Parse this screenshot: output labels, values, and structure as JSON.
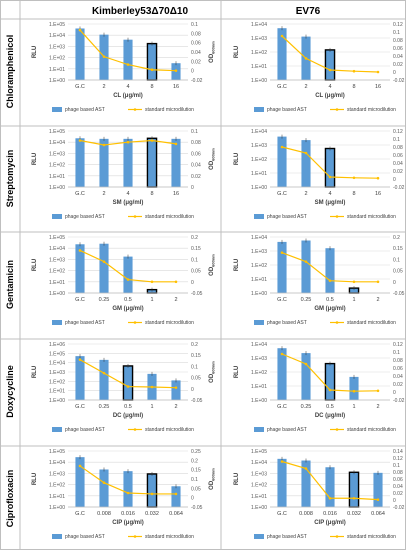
{
  "layout": {
    "columns": [
      "Kimberley53Δ70Δ10",
      "EV76"
    ],
    "rows": [
      "Chloramphenicol",
      "Streptomycin",
      "Gentamicin",
      "Doxycycline",
      "Ciprofloxacin"
    ]
  },
  "legend": {
    "bar_label": "phage based AST",
    "line_label": "standard microdilution"
  },
  "colors": {
    "bar": "#5b9bd5",
    "bar_highlight_border": "#000000",
    "line": "#ffc000",
    "error": "#333333",
    "gridline": "#d9d9d9",
    "frame": "#bfbfbf"
  },
  "axis_titles": {
    "y_left": "RLU",
    "y_right": "OD",
    "y_right_sub": "600nm"
  },
  "chart_data": [
    {
      "id": "k-cl",
      "type": "bar",
      "x_title": "CL (μg/ml)",
      "categories": [
        "G.C",
        "2",
        "4",
        "8",
        "16"
      ],
      "rlu_log10": [
        4.6,
        4.05,
        3.6,
        3.25,
        1.5
      ],
      "highlight_index": 3,
      "od": [
        0.087,
        0.03,
        0.013,
        0.002,
        0.0
      ],
      "od_ylim": [
        -0.02,
        0.1
      ],
      "od_ticks": [
        "-0.02",
        "0",
        "0.02",
        "0.04",
        "0.06",
        "0.08",
        "0.1"
      ],
      "log_max": 5
    },
    {
      "id": "e-cl",
      "type": "bar",
      "x_title": "CL (μg/ml)",
      "categories": [
        "G.C",
        "2",
        "4",
        "8",
        "16"
      ],
      "rlu_log10": [
        3.7,
        3.1,
        2.15,
        0,
        0
      ],
      "highlight_index": 2,
      "od": [
        0.09,
        0.034,
        0.005,
        0.002,
        0.0
      ],
      "od_ylim": [
        -0.02,
        0.12
      ],
      "od_ticks": [
        "-0.02",
        "0",
        "0.02",
        "0.04",
        "0.06",
        "0.08",
        "0.1",
        "0.12"
      ],
      "log_max": 4
    },
    {
      "id": "k-sm",
      "type": "bar",
      "x_title": "SM (μg/ml)",
      "categories": [
        "G.C",
        "2",
        "4",
        "8",
        "16"
      ],
      "rlu_log10": [
        4.35,
        4.3,
        4.3,
        4.35,
        4.3
      ],
      "highlight_index": 3,
      "od": [
        0.083,
        0.075,
        0.08,
        0.083,
        0.077
      ],
      "od_ylim": [
        0,
        0.1
      ],
      "od_ticks": [
        "0",
        "0.02",
        "0.04",
        "0.06",
        "0.08",
        "0.1"
      ],
      "log_max": 5
    },
    {
      "id": "e-sm",
      "type": "bar",
      "x_title": "SM (μg/ml)",
      "categories": [
        "G.C",
        "2",
        "4",
        "8",
        "16"
      ],
      "rlu_log10": [
        3.6,
        3.35,
        2.75,
        0,
        0
      ],
      "highlight_index": 2,
      "od": [
        0.08,
        0.065,
        0.005,
        0.003,
        0.002
      ],
      "od_ylim": [
        -0.02,
        0.12
      ],
      "od_ticks": [
        "-0.02",
        "0",
        "0.02",
        "0.04",
        "0.06",
        "0.08",
        "0.1",
        "0.12"
      ],
      "log_max": 4
    },
    {
      "id": "k-gm",
      "type": "bar",
      "x_title": "GM (μg/ml)",
      "categories": [
        "G.C",
        "0.25",
        "0.5",
        "1",
        "2"
      ],
      "rlu_log10": [
        4.35,
        4.4,
        3.25,
        0.3,
        0
      ],
      "highlight_index": 3,
      "od": [
        0.14,
        0.09,
        0.01,
        0.0,
        0.0
      ],
      "od_ylim": [
        -0.05,
        0.2
      ],
      "od_ticks": [
        "-0.05",
        "0",
        "0.05",
        "0.1",
        "0.15",
        "0.2"
      ],
      "log_max": 5
    },
    {
      "id": "e-gm",
      "type": "bar",
      "x_title": "GM (μg/ml)",
      "categories": [
        "G.C",
        "0.25",
        "0.5",
        "1",
        "2"
      ],
      "rlu_log10": [
        3.65,
        3.75,
        3.2,
        0.35,
        0
      ],
      "highlight_index": 3,
      "od": [
        0.13,
        0.09,
        0.005,
        0.0,
        0.0
      ],
      "od_ylim": [
        -0.05,
        0.2
      ],
      "od_ticks": [
        "-0.05",
        "0",
        "0.05",
        "0.1",
        "0.15",
        "0.2"
      ],
      "log_max": 4
    },
    {
      "id": "k-dc",
      "type": "bar",
      "x_title": "DC (μg/ml)",
      "categories": [
        "G.C",
        "0.25",
        "0.5",
        "1",
        "2"
      ],
      "rlu_log10": [
        4.7,
        4.3,
        3.65,
        2.8,
        2.1
      ],
      "highlight_index": 2,
      "od": [
        0.13,
        0.07,
        0.01,
        0.008,
        0.005
      ],
      "od_ylim": [
        -0.05,
        0.2
      ],
      "od_ticks": [
        "-0.05",
        "0",
        "0.05",
        "0.1",
        "0.15",
        "0.2"
      ],
      "log_max": 6
    },
    {
      "id": "e-dc",
      "type": "bar",
      "x_title": "DC (μg/ml)",
      "categories": [
        "G.C",
        "0.25",
        "0.5",
        "1",
        "2"
      ],
      "rlu_log10": [
        3.7,
        3.35,
        2.6,
        1.65,
        0
      ],
      "highlight_index": 2,
      "od": [
        0.095,
        0.07,
        0.005,
        0.002,
        0.003
      ],
      "od_ylim": [
        -0.02,
        0.12
      ],
      "od_ticks": [
        "-0.02",
        "0",
        "0.02",
        "0.04",
        "0.06",
        "0.08",
        "0.1",
        "0.12"
      ],
      "log_max": 4
    },
    {
      "id": "k-cip",
      "type": "bar",
      "x_title": "CIP (μg/ml)",
      "categories": [
        "G.C",
        "0.008",
        "0.016",
        "0.032",
        "0.064"
      ],
      "rlu_log10": [
        4.45,
        3.35,
        3.2,
        2.95,
        1.85
      ],
      "highlight_index": 3,
      "od": [
        0.17,
        0.08,
        0.025,
        0.02,
        0.02
      ],
      "od_ylim": [
        -0.05,
        0.25
      ],
      "od_ticks": [
        "-0.05",
        "0",
        "0.05",
        "0.1",
        "0.15",
        "0.2",
        "0.25"
      ],
      "log_max": 5
    },
    {
      "id": "e-cip",
      "type": "bar",
      "x_title": "CIP (μg/ml)",
      "categories": [
        "G.C",
        "0.008",
        "0.016",
        "0.032",
        "0.064"
      ],
      "rlu_log10": [
        4.3,
        4.15,
        3.55,
        3.1,
        3.05
      ],
      "highlight_index": 3,
      "od": [
        0.11,
        0.09,
        0.005,
        0.005,
        0.001
      ],
      "od_ylim": [
        -0.02,
        0.14
      ],
      "od_ticks": [
        "-0.02",
        "0",
        "0.02",
        "0.04",
        "0.06",
        "0.08",
        "0.1",
        "0.12",
        "0.14"
      ],
      "log_max": 5
    }
  ]
}
